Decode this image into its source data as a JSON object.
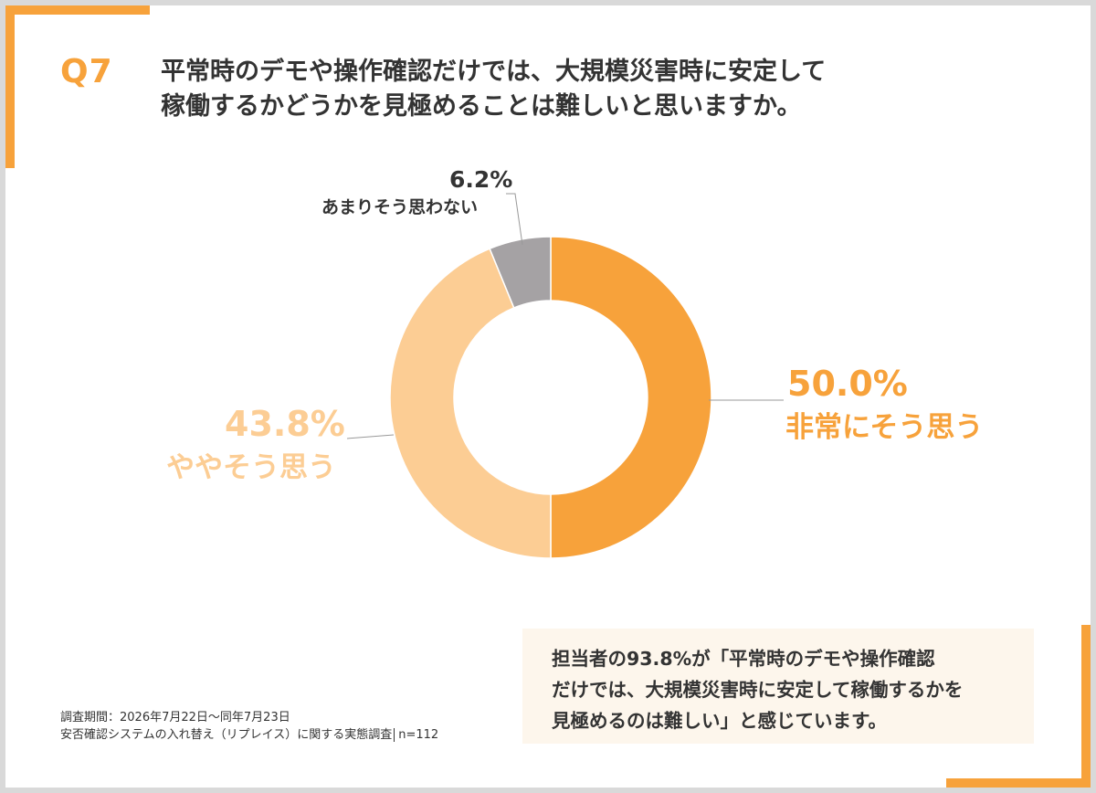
{
  "question": {
    "label": "Q7",
    "line1": "平常時のデモや操作確認だけでは、大規模災害時に安定して",
    "line2": "稼働するかどうかを見極めることは難しいと思いますか。"
  },
  "chart_data": {
    "type": "pie",
    "title": "",
    "slices": [
      {
        "label": "非常にそう思う",
        "value": 50.0,
        "display": "50.0%",
        "color": "#f7a23b"
      },
      {
        "label": "ややそう思う",
        "value": 43.8,
        "display": "43.8%",
        "color": "#fccd94"
      },
      {
        "label": "あまりそう思わない",
        "value": 6.2,
        "display": "6.2%",
        "color": "#a5a2a4"
      }
    ],
    "donut": true,
    "start": "12 o'clock",
    "direction": "clockwise"
  },
  "source": {
    "line1": "調査期間：2026年7月22日～同年7月23日",
    "line2": "安否確認システムの入れ替え（リプレイス）に関する実態調査",
    "n": "n=112"
  },
  "summary": {
    "line1": "担当者の93.8%が「平常時のデモや操作確認",
    "line2": "だけでは、大規模災害時に安定して稼働するかを",
    "line3": "見極めるのは難しい」と感じています。"
  },
  "colors": {
    "accent": "#f7a23b",
    "light": "#fccd94",
    "gray": "#a5a2a4",
    "text": "#333333"
  }
}
